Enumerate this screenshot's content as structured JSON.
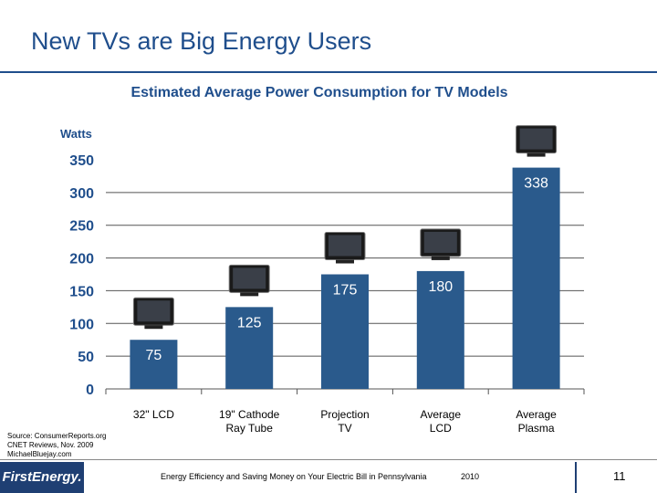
{
  "slide": {
    "title": "New TVs are Big Energy Users"
  },
  "chart_data": {
    "type": "bar",
    "title": "Estimated Average Power Consumption for TV Models",
    "ylabel": "Watts",
    "xlabel": "",
    "ylim": [
      0,
      350
    ],
    "yticks": [
      0,
      50,
      100,
      150,
      200,
      250,
      300,
      350
    ],
    "categories": [
      "32\" LCD",
      "19\" Cathode Ray Tube",
      "Projection TV",
      "Average LCD",
      "Average Plasma"
    ],
    "category_lines": [
      [
        "32\" LCD"
      ],
      [
        "19\" Cathode",
        "Ray Tube"
      ],
      [
        "Projection",
        "TV"
      ],
      [
        "Average",
        "LCD"
      ],
      [
        "Average",
        "Plasma"
      ]
    ],
    "values": [
      75,
      125,
      175,
      180,
      338
    ],
    "value_labels": [
      "75",
      "125",
      "175",
      "180",
      "338"
    ],
    "bar_color": "#2a5a8c",
    "grid": true
  },
  "footer": {
    "source_lines": [
      "Source: ConsumerReports.org",
      "CNET Reviews, Nov. 2009",
      "MichaelBluejay.com"
    ],
    "logo_text": "FirstEnergy.",
    "text": "Energy Efficiency and Saving Money on Your Electric Bill in Pennsylvania",
    "year": "2010",
    "page": "11"
  },
  "colors": {
    "title": "#1f4e8c",
    "bar": "#2a5a8c",
    "logo_bg": "#1f3f73"
  }
}
